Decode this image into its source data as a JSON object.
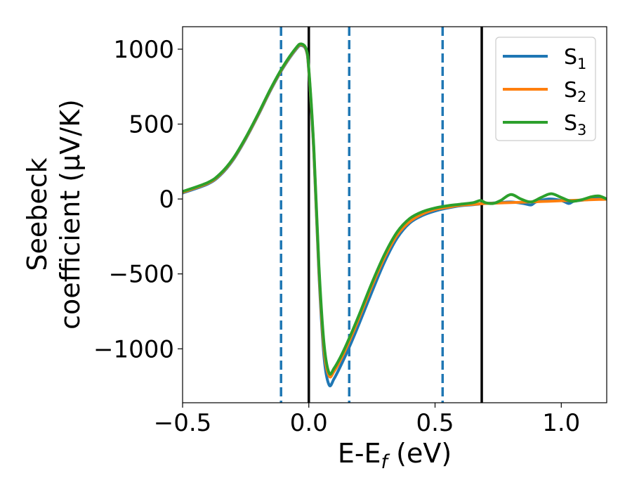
{
  "chart_data": {
    "type": "line",
    "title": "",
    "xlabel": "E-E",
    "xlabel_sub": "f",
    "xlabel_unit": " (eV)",
    "ylabel_line1": "Seebeck",
    "ylabel_line2": "coefficient  (μV/K)",
    "xlim": [
      -0.5,
      1.18
    ],
    "ylim": [
      -1360,
      1150
    ],
    "xticks": [
      -0.5,
      0.0,
      0.5,
      1.0
    ],
    "xtick_labels": [
      "−0.5",
      "0.0",
      "0.5",
      "1.0"
    ],
    "yticks": [
      -1000,
      -500,
      0,
      500,
      1000
    ],
    "ytick_labels": [
      "−1000",
      "−500",
      "0",
      "500",
      "1000"
    ],
    "grid": false,
    "legend_position": "top-right",
    "series": [
      {
        "name": "S",
        "name_sub": "1",
        "color": "#1f77b4",
        "x": [
          -0.5,
          -0.4,
          -0.35,
          -0.3,
          -0.25,
          -0.2,
          -0.15,
          -0.1,
          -0.05,
          -0.03,
          -0.01,
          0.0,
          0.02,
          0.04,
          0.06,
          0.08,
          0.1,
          0.13,
          0.16,
          0.2,
          0.25,
          0.3,
          0.35,
          0.4,
          0.45,
          0.5,
          0.55,
          0.6,
          0.65,
          0.7,
          0.75,
          0.8,
          0.85,
          0.88,
          0.9,
          0.95,
          1.0,
          1.03,
          1.05,
          1.1,
          1.15,
          1.18
        ],
        "y": [
          40,
          100,
          160,
          260,
          400,
          560,
          730,
          880,
          1000,
          1025,
          990,
          850,
          300,
          -500,
          -1050,
          -1240,
          -1200,
          -1100,
          -990,
          -830,
          -620,
          -420,
          -260,
          -160,
          -110,
          -80,
          -60,
          -45,
          -38,
          -30,
          -25,
          -20,
          -30,
          -40,
          -20,
          0,
          -10,
          -30,
          -15,
          -5,
          5,
          0
        ]
      },
      {
        "name": "S",
        "name_sub": "2",
        "color": "#ff7f0e",
        "x": [
          -0.5,
          -0.4,
          -0.35,
          -0.3,
          -0.25,
          -0.2,
          -0.15,
          -0.1,
          -0.05,
          -0.03,
          -0.01,
          0.0,
          0.02,
          0.04,
          0.06,
          0.08,
          0.1,
          0.13,
          0.16,
          0.2,
          0.25,
          0.3,
          0.35,
          0.4,
          0.45,
          0.5,
          0.55,
          0.6,
          0.65,
          0.7,
          0.75,
          0.8,
          0.85,
          0.9,
          0.95,
          1.0,
          1.05,
          1.1,
          1.15,
          1.18
        ],
        "y": [
          45,
          105,
          165,
          265,
          405,
          565,
          735,
          885,
          1005,
          1030,
          995,
          860,
          320,
          -470,
          -1000,
          -1180,
          -1150,
          -1060,
          -950,
          -790,
          -580,
          -390,
          -240,
          -150,
          -100,
          -70,
          -55,
          -42,
          -36,
          -30,
          -27,
          -24,
          -21,
          -18,
          -15,
          -12,
          -9,
          -6,
          -3,
          -2
        ]
      },
      {
        "name": "S",
        "name_sub": "3",
        "color": "#2ca02c",
        "x": [
          -0.5,
          -0.4,
          -0.35,
          -0.3,
          -0.25,
          -0.2,
          -0.15,
          -0.1,
          -0.05,
          -0.03,
          -0.01,
          0.0,
          0.02,
          0.04,
          0.06,
          0.08,
          0.1,
          0.13,
          0.16,
          0.2,
          0.25,
          0.3,
          0.35,
          0.4,
          0.45,
          0.5,
          0.55,
          0.6,
          0.65,
          0.68,
          0.7,
          0.73,
          0.76,
          0.8,
          0.84,
          0.88,
          0.92,
          0.96,
          1.0,
          1.04,
          1.08,
          1.12,
          1.15,
          1.18
        ],
        "y": [
          50,
          110,
          170,
          270,
          410,
          570,
          740,
          890,
          1010,
          1035,
          1000,
          870,
          340,
          -440,
          -960,
          -1160,
          -1130,
          -1040,
          -930,
          -770,
          -560,
          -370,
          -220,
          -130,
          -85,
          -60,
          -45,
          -35,
          -25,
          -10,
          -25,
          -30,
          -10,
          30,
          0,
          -20,
          10,
          35,
          10,
          -15,
          -5,
          15,
          20,
          0
        ]
      }
    ],
    "vlines": [
      {
        "x": -0.11,
        "style": "dashed",
        "color": "#1f77b4"
      },
      {
        "x": 0.0,
        "style": "solid",
        "color": "#000000"
      },
      {
        "x": 0.16,
        "style": "dashed",
        "color": "#1f77b4"
      },
      {
        "x": 0.53,
        "style": "dashed",
        "color": "#1f77b4"
      },
      {
        "x": 0.685,
        "style": "solid",
        "color": "#000000"
      }
    ]
  }
}
